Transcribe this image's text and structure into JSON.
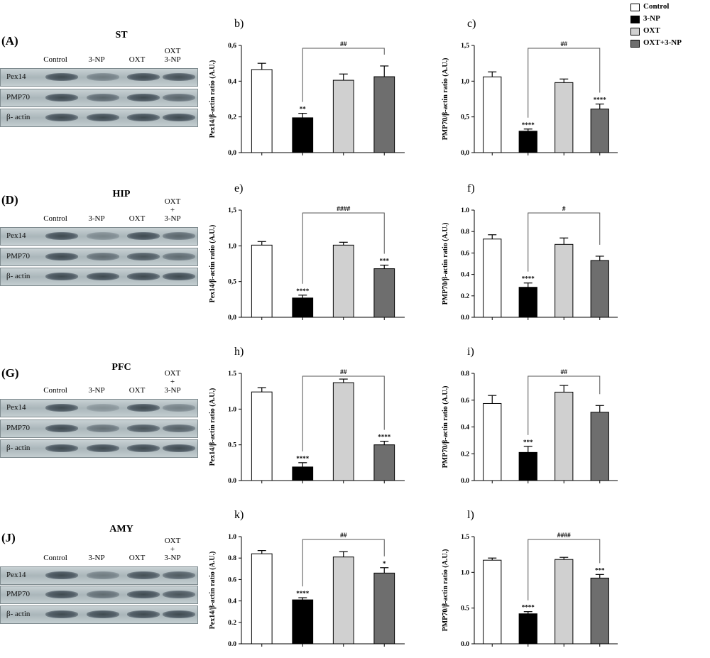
{
  "colors": {
    "control": "#ffffff",
    "np3": "#000000",
    "oxt": "#d0d0d0",
    "oxtnp": "#6e6e6e"
  },
  "legend": [
    {
      "label": "Control",
      "color": "#ffffff"
    },
    {
      "label": "3-NP",
      "color": "#000000"
    },
    {
      "label": "OXT",
      "color": "#d0d0d0"
    },
    {
      "label": "OXT+3-NP",
      "color": "#6e6e6e"
    }
  ],
  "blots": [
    {
      "letter": "(A)",
      "title": "ST",
      "lanes": [
        "Control",
        "3-NP",
        "OXT",
        "OXT\n3-NP"
      ],
      "rows": [
        "Pex14",
        "PMP70",
        "β- actin"
      ]
    },
    {
      "letter": "(D)",
      "title": "HIP",
      "lanes": [
        "Control",
        "3-NP",
        "OXT",
        "OXT\n+\n3-NP"
      ],
      "rows": [
        "Pex14",
        "PMP70",
        "β- actin"
      ]
    },
    {
      "letter": "(G)",
      "title": "PFC",
      "lanes": [
        "Control",
        "3-NP",
        "OXT",
        "OXT\n+\n3-NP"
      ],
      "rows": [
        "Pex14",
        "PMP70",
        "β- actin"
      ]
    },
    {
      "letter": "(J)",
      "title": "AMY",
      "lanes": [
        "Control",
        "3-NP",
        "OXT",
        "OXT\n+\n3-NP"
      ],
      "rows": [
        "Pex14",
        "PMP70",
        "β- actin"
      ]
    }
  ],
  "chart_data": [
    {
      "type": "bar",
      "panel": "b)",
      "ylabel": "Pex14/β-actin ratio (A.U.)",
      "ylim": [
        0,
        0.6
      ],
      "yticks": [
        "0,0",
        "0,2",
        "0,4",
        "0,6"
      ],
      "tickvals": [
        0,
        0.2,
        0.4,
        0.6
      ],
      "categories": [
        "Control",
        "3-NP",
        "OXT",
        "OXT+3-NP"
      ],
      "values": [
        0.465,
        0.195,
        0.405,
        0.425
      ],
      "errors": [
        0.035,
        0.025,
        0.035,
        0.06
      ],
      "stars": [
        "",
        "**",
        "",
        ""
      ],
      "hash": "##"
    },
    {
      "type": "bar",
      "panel": "c)",
      "ylabel": "PMP70/β-actin ratio (A.U.)",
      "ylim": [
        0,
        1.5
      ],
      "yticks": [
        "0,0",
        "0,5",
        "1,0",
        "1,5"
      ],
      "tickvals": [
        0,
        0.5,
        1.0,
        1.5
      ],
      "categories": [
        "Control",
        "3-NP",
        "OXT",
        "OXT+3-NP"
      ],
      "values": [
        1.06,
        0.3,
        0.98,
        0.61
      ],
      "errors": [
        0.07,
        0.03,
        0.05,
        0.07
      ],
      "stars": [
        "",
        "****",
        "",
        "****"
      ],
      "hash": "##"
    },
    {
      "type": "bar",
      "panel": "e)",
      "ylabel": "Pex14/β-actin ratio (A.U.)",
      "ylim": [
        0,
        1.5
      ],
      "yticks": [
        "0,0",
        "0,5",
        "1,0",
        "1,5"
      ],
      "tickvals": [
        0,
        0.5,
        1.0,
        1.5
      ],
      "categories": [
        "Control",
        "3-NP",
        "OXT",
        "OXT+3-NP"
      ],
      "values": [
        1.01,
        0.27,
        1.01,
        0.68
      ],
      "errors": [
        0.05,
        0.04,
        0.04,
        0.05
      ],
      "stars": [
        "",
        "****",
        "",
        "***"
      ],
      "hash": "####"
    },
    {
      "type": "bar",
      "panel": "f)",
      "ylabel": "PMP70/β-actin ratio (A.U.)",
      "ylim": [
        0,
        1.0
      ],
      "yticks": [
        "0.0",
        "0.2",
        "0.4",
        "0.6",
        "0.8",
        "1.0"
      ],
      "tickvals": [
        0,
        0.2,
        0.4,
        0.6,
        0.8,
        1.0
      ],
      "categories": [
        "Control",
        "3-NP",
        "OXT",
        "OXT+3-NP"
      ],
      "values": [
        0.73,
        0.28,
        0.68,
        0.53
      ],
      "errors": [
        0.04,
        0.04,
        0.06,
        0.04
      ],
      "stars": [
        "",
        "****",
        "",
        ""
      ],
      "hash": "#"
    },
    {
      "type": "bar",
      "panel": "h)",
      "ylabel": "Pex14/β-actin ratio (A.U.)",
      "ylim": [
        0,
        1.5
      ],
      "yticks": [
        "0.0",
        "0.5",
        "1.0",
        "1.5"
      ],
      "tickvals": [
        0,
        0.5,
        1.0,
        1.5
      ],
      "categories": [
        "Control",
        "3-NP",
        "OXT",
        "OXT+3-NP"
      ],
      "values": [
        1.24,
        0.19,
        1.37,
        0.5
      ],
      "errors": [
        0.06,
        0.06,
        0.05,
        0.05
      ],
      "stars": [
        "",
        "****",
        "",
        "****"
      ],
      "hash": "##"
    },
    {
      "type": "bar",
      "panel": "i)",
      "ylabel": "PMP70/β-actin ratio (A.U.)",
      "ylim": [
        0,
        0.8
      ],
      "yticks": [
        "0.0",
        "0.2",
        "0.4",
        "0.6",
        "0.8"
      ],
      "tickvals": [
        0,
        0.2,
        0.4,
        0.6,
        0.8
      ],
      "categories": [
        "Control",
        "3-NP",
        "OXT",
        "OXT+3-NP"
      ],
      "values": [
        0.575,
        0.21,
        0.66,
        0.51
      ],
      "errors": [
        0.06,
        0.045,
        0.05,
        0.05
      ],
      "stars": [
        "",
        "***",
        "",
        ""
      ],
      "hash": "##"
    },
    {
      "type": "bar",
      "panel": "k)",
      "ylabel": "Pex14/β-actin ratio (A.U.)",
      "ylim": [
        0,
        1.0
      ],
      "yticks": [
        "0.0",
        "0.2",
        "0.4",
        "0.6",
        "0.8",
        "1.0"
      ],
      "tickvals": [
        0,
        0.2,
        0.4,
        0.6,
        0.8,
        1.0
      ],
      "categories": [
        "Control",
        "3-NP",
        "OXT",
        "OXT+3-NP"
      ],
      "values": [
        0.84,
        0.41,
        0.81,
        0.66
      ],
      "errors": [
        0.03,
        0.02,
        0.05,
        0.05
      ],
      "stars": [
        "",
        "****",
        "",
        "*"
      ],
      "hash": "##"
    },
    {
      "type": "bar",
      "panel": "l)",
      "ylabel": "PMP70/β-actin ratio (A.U.)",
      "ylim": [
        0,
        1.5
      ],
      "yticks": [
        "0.0",
        "0.5",
        "1.0",
        "1.5"
      ],
      "tickvals": [
        0,
        0.5,
        1.0,
        1.5
      ],
      "categories": [
        "Control",
        "3-NP",
        "OXT",
        "OXT+3-NP"
      ],
      "values": [
        1.17,
        0.42,
        1.18,
        0.92
      ],
      "errors": [
        0.03,
        0.03,
        0.03,
        0.05
      ],
      "stars": [
        "",
        "****",
        "",
        "***"
      ],
      "hash": "####"
    }
  ]
}
